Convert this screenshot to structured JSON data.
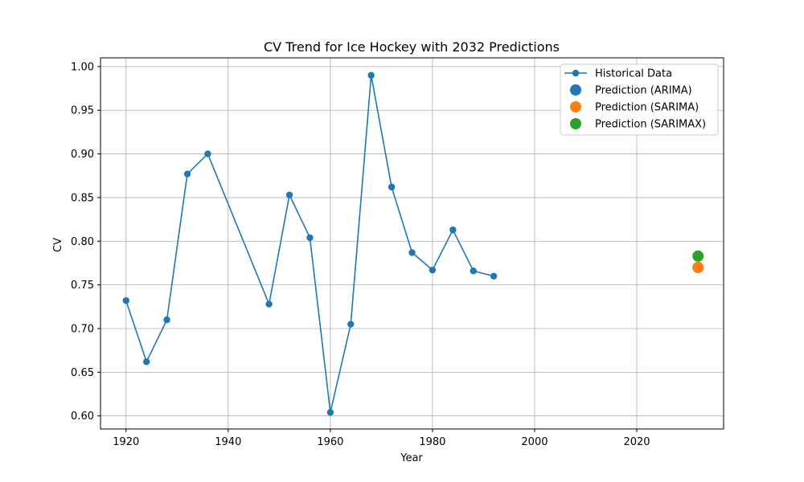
{
  "chart_data": {
    "type": "line",
    "title": "CV Trend for Ice Hockey with 2032 Predictions",
    "xlabel": "Year",
    "ylabel": "CV",
    "xlim": [
      1915,
      2037
    ],
    "ylim": [
      0.585,
      1.01
    ],
    "xticks": [
      1920,
      1940,
      1960,
      1980,
      2000,
      2020
    ],
    "yticks": [
      0.6,
      0.65,
      0.7,
      0.75,
      0.8,
      0.85,
      0.9,
      0.95,
      1.0
    ],
    "grid": true,
    "legend_position": "top-right",
    "series": [
      {
        "name": "Historical Data",
        "kind": "line-marker",
        "color": "#1f77b4",
        "x": [
          1920,
          1924,
          1928,
          1932,
          1936,
          1948,
          1952,
          1956,
          1960,
          1964,
          1968,
          1972,
          1976,
          1980,
          1984,
          1988,
          1992
        ],
        "y": [
          0.732,
          0.662,
          0.71,
          0.877,
          0.9,
          0.728,
          0.853,
          0.804,
          0.604,
          0.705,
          0.99,
          0.862,
          0.787,
          0.767,
          0.813,
          0.766,
          0.76
        ]
      },
      {
        "name": "Prediction (ARIMA)",
        "kind": "point",
        "color": "#1f77b4",
        "x": [
          2032
        ],
        "y": [
          0.77
        ]
      },
      {
        "name": "Prediction (SARIMA)",
        "kind": "point",
        "color": "#ff7f0e",
        "x": [
          2032
        ],
        "y": [
          0.77
        ]
      },
      {
        "name": "Prediction (SARIMAX)",
        "kind": "point",
        "color": "#2ca02c",
        "x": [
          2032
        ],
        "y": [
          0.783
        ]
      }
    ]
  }
}
